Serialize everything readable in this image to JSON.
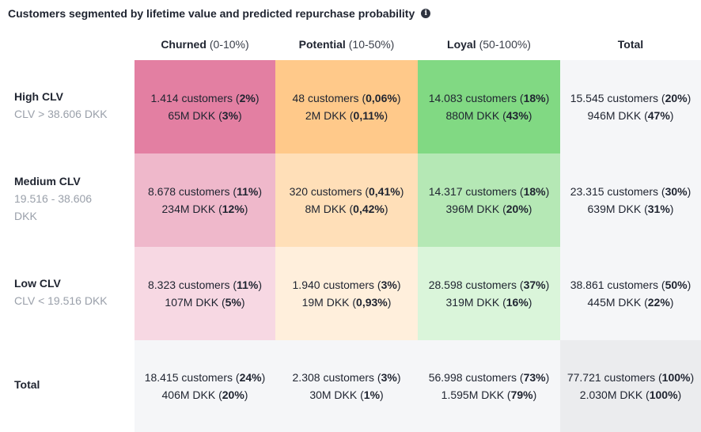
{
  "title": "Customers segmented by lifetime value and predicted repurchase probability",
  "info_icon": "info-icon",
  "columns": [
    {
      "name": "Churned",
      "range": "(0-10%)"
    },
    {
      "name": "Potential",
      "range": "(10-50%)"
    },
    {
      "name": "Loyal",
      "range": "(50-100%)"
    },
    {
      "name": "Total",
      "range": ""
    }
  ],
  "rows": [
    {
      "name": "High CLV",
      "sub": "CLV > 38.606 DKK"
    },
    {
      "name": "Medium CLV",
      "sub": "19.516 - 38.606 DKK"
    },
    {
      "name": "Low CLV",
      "sub": "CLV < 19.516 DKK"
    },
    {
      "name": "Total",
      "sub": ""
    }
  ],
  "colors": {
    "churned": [
      "#e37fa2",
      "#efb8cb",
      "#f7d8e3"
    ],
    "potential": [
      "#ffc98a",
      "#ffdfb8",
      "#ffefdc"
    ],
    "loyal": [
      "#81d983",
      "#b5e8b5",
      "#daf5da"
    ],
    "total_light": "#f5f6f8",
    "total_grand": "#ebecee"
  },
  "chart_data": {
    "type": "table",
    "title": "Customers segmented by lifetime value and predicted repurchase probability",
    "columns": [
      "Churned (0-10%)",
      "Potential (10-50%)",
      "Loyal (50-100%)",
      "Total"
    ],
    "rows": [
      "High CLV",
      "Medium CLV",
      "Low CLV",
      "Total"
    ],
    "cells": [
      [
        {
          "customers": "1.414",
          "customers_pct": "2%",
          "value": "65M",
          "value_pct": "3%"
        },
        {
          "customers": "48",
          "customers_pct": "0,06%",
          "value": "2M",
          "value_pct": "0,11%"
        },
        {
          "customers": "14.083",
          "customers_pct": "18%",
          "value": "880M",
          "value_pct": "43%"
        },
        {
          "customers": "15.545",
          "customers_pct": "20%",
          "value": "946M",
          "value_pct": "47%"
        }
      ],
      [
        {
          "customers": "8.678",
          "customers_pct": "11%",
          "value": "234M",
          "value_pct": "12%"
        },
        {
          "customers": "320",
          "customers_pct": "0,41%",
          "value": "8M",
          "value_pct": "0,42%"
        },
        {
          "customers": "14.317",
          "customers_pct": "18%",
          "value": "396M",
          "value_pct": "20%"
        },
        {
          "customers": "23.315",
          "customers_pct": "30%",
          "value": "639M",
          "value_pct": "31%"
        }
      ],
      [
        {
          "customers": "8.323",
          "customers_pct": "11%",
          "value": "107M",
          "value_pct": "5%"
        },
        {
          "customers": "1.940",
          "customers_pct": "3%",
          "value": "19M",
          "value_pct": "0,93%"
        },
        {
          "customers": "28.598",
          "customers_pct": "37%",
          "value": "319M",
          "value_pct": "16%"
        },
        {
          "customers": "38.861",
          "customers_pct": "50%",
          "value": "445M",
          "value_pct": "22%"
        }
      ],
      [
        {
          "customers": "18.415",
          "customers_pct": "24%",
          "value": "406M",
          "value_pct": "20%"
        },
        {
          "customers": "2.308",
          "customers_pct": "3%",
          "value": "30M",
          "value_pct": "1%"
        },
        {
          "customers": "56.998",
          "customers_pct": "73%",
          "value": "1.595M",
          "value_pct": "79%"
        },
        {
          "customers": "77.721",
          "customers_pct": "100%",
          "value": "2.030M",
          "value_pct": "100%"
        }
      ]
    ],
    "customers_unit": "customers",
    "value_unit": "DKK"
  }
}
